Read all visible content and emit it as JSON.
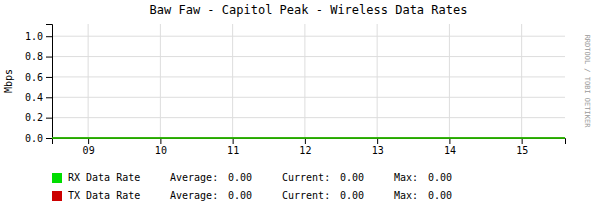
{
  "chart_data": {
    "type": "line",
    "title": "Baw Faw - Capitol Peak - Wireless Data Rates",
    "y_label": "Mbps",
    "x": [
      8.5,
      15.6
    ],
    "series": [
      {
        "name": "RX Data Rate",
        "color": "#00dd00",
        "values": [
          0.0,
          0.0
        ],
        "stats": [
          {
            "name": "Average:",
            "value": 0,
            "label": "0.00"
          },
          {
            "name": "Current:",
            "value": 0,
            "label": "0.00"
          },
          {
            "name": "Max:",
            "value": 0,
            "label": "0.00"
          }
        ]
      },
      {
        "name": "TX Data Rate",
        "color": "#cc0000",
        "values": [
          0.0,
          0.0
        ],
        "stats": [
          {
            "name": "Average:",
            "value": 0,
            "label": "0.00"
          },
          {
            "name": "Current:",
            "value": 0,
            "label": "0.00"
          },
          {
            "name": "Max:",
            "value": 0,
            "label": "0.00"
          }
        ]
      }
    ],
    "xlim": [
      8.5,
      15.6
    ],
    "ylim": [
      0.0,
      1.12
    ],
    "xticks": [
      {
        "value": 9,
        "label": "09"
      },
      10,
      11,
      12,
      13,
      14,
      15
    ],
    "yticks": [
      {
        "value": 0.0,
        "label": "0.0"
      },
      0.2,
      0.4,
      0.6,
      0.8,
      {
        "value": 1.0,
        "label": "1.0"
      }
    ],
    "grid": true,
    "annotations": [
      "RRDTOOL / TOBI OETIKER"
    ]
  }
}
